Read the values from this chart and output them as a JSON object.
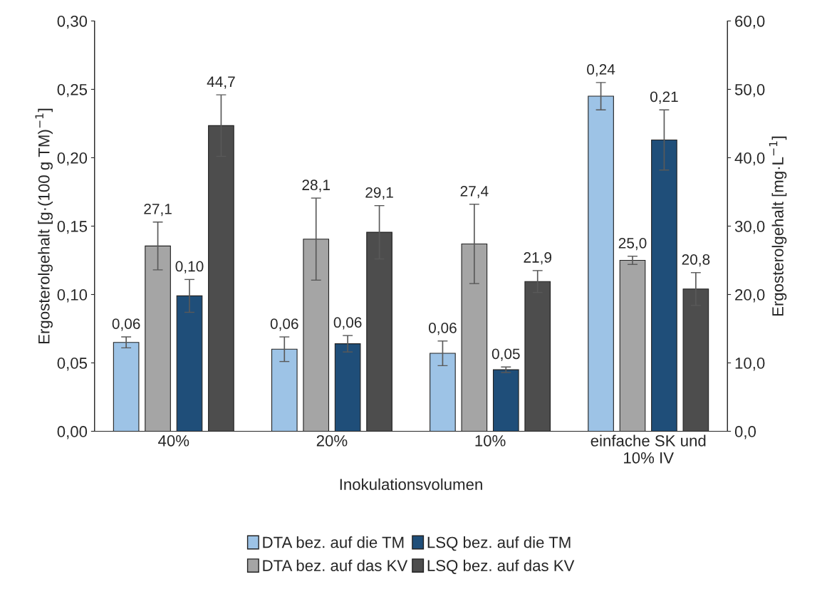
{
  "chart_data": {
    "type": "bar",
    "xlabel": "Inokulationsvolumen",
    "ylabel": "Ergosterolgehalt [g·(100 g TM)$^{−1}$]",
    "y2label": "Ergosterolgehalt [mg·L$^{−1}$]",
    "categories": [
      "40%",
      "20%",
      "10%",
      "einfache SK und\n10% IV"
    ],
    "ylim": [
      0,
      0.3
    ],
    "yticks": [
      {
        "value": 0,
        "label": "0,00"
      },
      {
        "value": 0.05,
        "label": "0,05"
      },
      {
        "value": 0.1,
        "label": "0,10"
      },
      {
        "value": 0.15,
        "label": "0,15"
      },
      {
        "value": 0.2,
        "label": "0,20"
      },
      {
        "value": 0.25,
        "label": "0,25"
      },
      {
        "value": 0.3,
        "label": "0,30"
      }
    ],
    "y2lim": [
      0,
      60
    ],
    "y2ticks": [
      {
        "value": 0,
        "label": "0,0"
      },
      {
        "value": 10,
        "label": "10,0"
      },
      {
        "value": 20,
        "label": "20,0"
      },
      {
        "value": 30,
        "label": "30,0"
      },
      {
        "value": 40,
        "label": "40,0"
      },
      {
        "value": 50,
        "label": "50,0"
      },
      {
        "value": 60,
        "label": "60,0"
      }
    ],
    "grid": false,
    "legend": "bottom",
    "series": [
      {
        "name": "DTA bez. auf die TM",
        "color": "#9dc3e6",
        "values": [
          0.065,
          0.06,
          0.057,
          0.245
        ],
        "errors": [
          0.004,
          0.009,
          0.009,
          0.01
        ],
        "value_labels": [
          "0,06",
          "0,06",
          "0,06",
          "0,24"
        ]
      },
      {
        "name": "DTA bez. auf das KV",
        "color": "#a5a5a5",
        "axis": "y2",
        "values": [
          27.1,
          28.1,
          27.4,
          25.0
        ],
        "errors": [
          3.5,
          6.0,
          5.8,
          0.6
        ],
        "value_labels": [
          "27,1",
          "28,1",
          "27,4",
          "25,0"
        ]
      },
      {
        "name": "LSQ bez. auf die TM",
        "color": "#1f4e79",
        "values": [
          0.099,
          0.064,
          0.045,
          0.213
        ],
        "errors": [
          0.012,
          0.006,
          0.002,
          0.022
        ],
        "value_labels": [
          "0,10",
          "0,06",
          "0,05",
          "0,21"
        ]
      },
      {
        "name": "LSQ bez. auf das KV",
        "color": "#4d4d4d",
        "axis": "y2",
        "values": [
          44.7,
          29.1,
          21.9,
          20.8
        ],
        "errors": [
          4.5,
          3.9,
          1.6,
          2.4
        ],
        "value_labels": [
          "44,7",
          "29,1",
          "21,9",
          "20,8"
        ]
      }
    ]
  }
}
